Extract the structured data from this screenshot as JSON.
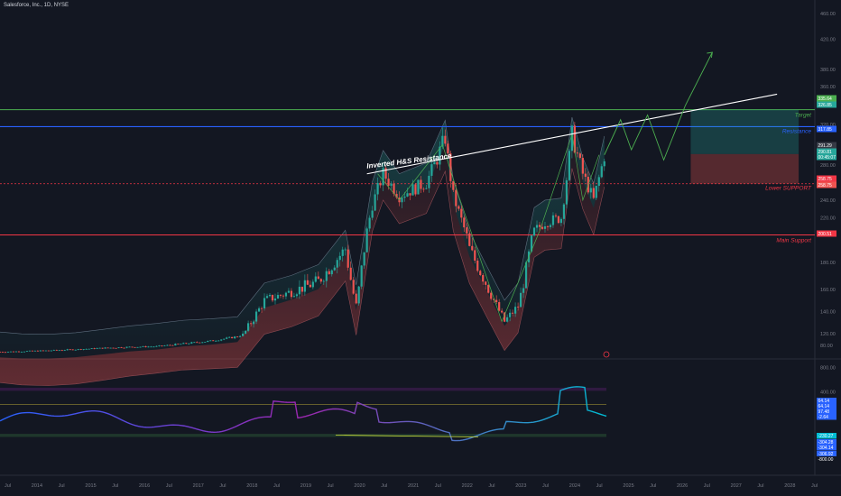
{
  "title": "Salesforce, Inc., 1D, NYSE",
  "colors": {
    "background": "#131722",
    "up_candle": "#26a69a",
    "down_candle": "#ef5350",
    "resistance": "#2962ff",
    "target": "#4caf50",
    "support": "#f23645",
    "trendline": "#ffffff",
    "projection": "#4caf50"
  },
  "chart_data": [
    {
      "type": "candlestick",
      "y_axis_labels": [
        "460.00",
        "420.00",
        "380.00",
        "360.00",
        "320.00",
        "280.00",
        "240.00",
        "220.00",
        "180.00",
        "160.00",
        "140.00",
        "120.00",
        "80.00"
      ],
      "x_axis_labels": [
        "Jul",
        "2014",
        "Jul",
        "2015",
        "Jul",
        "2016",
        "Jul",
        "2017",
        "Jul",
        "2018",
        "Jul",
        "2019",
        "Jul",
        "2020",
        "Jul",
        "2021",
        "Jul",
        "2022",
        "Jul",
        "2023",
        "Jul",
        "2024",
        "Jul",
        "2025",
        "Jul",
        "2026",
        "Jul",
        "2027",
        "Jul",
        "2028",
        "Jul"
      ],
      "price_tags": [
        {
          "text": "335.64",
          "color": "#4caf50"
        },
        {
          "text": "326.85",
          "color": "#26a69a"
        },
        {
          "text": "317.85",
          "color": "#2962ff"
        },
        {
          "text": "291.29",
          "color": "#363a45"
        },
        {
          "text": "290.81",
          "color": "#26a69a"
        },
        {
          "text": "00:45:07",
          "color": "#26a69a"
        },
        {
          "text": "258.75",
          "color": "#f23645"
        },
        {
          "text": "258.75",
          "color": "#ef5350"
        },
        {
          "text": "200.51",
          "color": "#f23645"
        }
      ],
      "annotations": [
        {
          "text": "Inverted H&S Resistance"
        },
        {
          "text": "Target"
        },
        {
          "text": "Resistance"
        },
        {
          "text": "Lower SUPPORT"
        },
        {
          "text": "Main Support"
        }
      ],
      "levels": {
        "target": 335.64,
        "resistance": 317.85,
        "lower_support": 258.75,
        "main_support": 200.51
      },
      "series": [
        {
          "name": "",
          "x": [
            2013.6,
            2014.0,
            2014.5,
            2015.0,
            2015.5,
            2016.0,
            2016.5,
            2017.0,
            2017.5,
            2018.0,
            2018.5,
            2019.0,
            2019.5,
            2020.0,
            2020.2,
            2020.5,
            2020.7,
            2021.0,
            2021.5,
            2021.85,
            2022.0,
            2022.3,
            2022.6,
            2022.95,
            2023.2,
            2023.5,
            2023.7,
            2024.0,
            2024.2,
            2024.4,
            2024.6,
            2024.8
          ],
          "values": [
            56,
            58,
            61,
            65,
            70,
            74,
            76,
            86,
            95,
            110,
            150,
            158,
            166,
            190,
            145,
            235,
            270,
            245,
            260,
            307,
            245,
            190,
            165,
            131,
            145,
            205,
            215,
            220,
            310,
            270,
            240,
            290
          ]
        }
      ],
      "projection": {
        "x": [
          2024.8,
          2025.1,
          2025.3,
          2025.6,
          2025.9,
          2026.3,
          2026.8
        ],
        "values": [
          290,
          325,
          295,
          330,
          285,
          340,
          400
        ]
      },
      "ylim": [
        60,
        480
      ],
      "xlim": [
        2013.6,
        2028.7
      ],
      "grid": false,
      "legend": "none"
    },
    {
      "type": "line",
      "y_axis_labels": [
        "800.00",
        "400.00"
      ],
      "price_tags": [
        {
          "text": "64.14",
          "color": "#2962ff"
        },
        {
          "text": "64.14",
          "color": "#2962ff"
        },
        {
          "text": "97.48",
          "color": "#2962ff"
        },
        {
          "text": "-2.64",
          "color": "#2962ff"
        },
        {
          "text": "-230.27",
          "color": "#00bcd4"
        },
        {
          "text": "-304.28",
          "color": "#2962ff"
        },
        {
          "text": "-304.14",
          "color": "#2962ff"
        },
        {
          "text": "-306.92",
          "color": "#2962ff"
        },
        {
          "text": "-800.00",
          "color": "#131722"
        }
      ],
      "ylim": [
        -850,
        850
      ],
      "legend": "none"
    }
  ]
}
